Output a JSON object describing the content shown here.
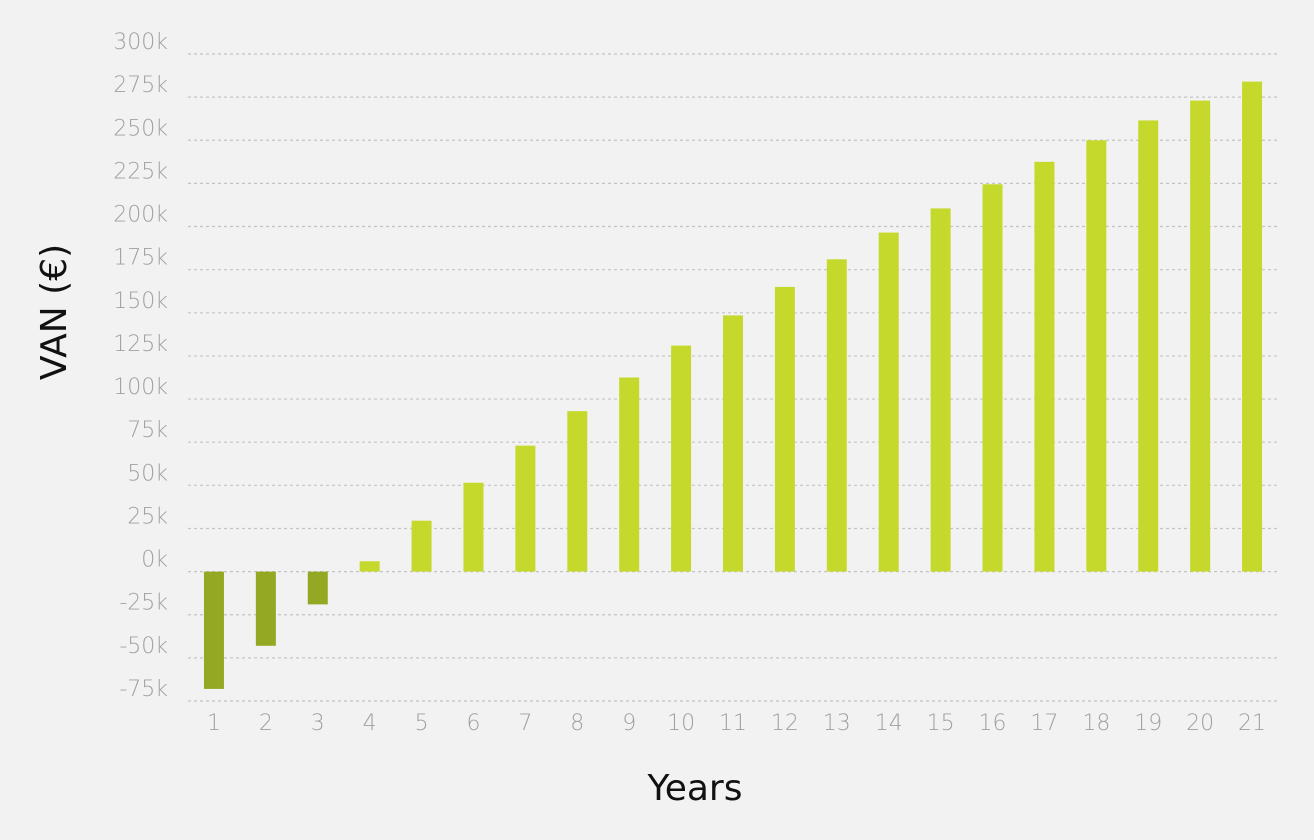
{
  "chart_data": {
    "type": "bar",
    "x_label": "Years",
    "y_label": "VAN (€)",
    "categories": [
      "1",
      "2",
      "3",
      "4",
      "5",
      "6",
      "7",
      "8",
      "9",
      "10",
      "11",
      "12",
      "13",
      "14",
      "15",
      "16",
      "17",
      "18",
      "19",
      "20",
      "21"
    ],
    "values": [
      -68000,
      -43000,
      -19000,
      6000,
      29500,
      51500,
      73000,
      93000,
      112500,
      131000,
      148500,
      165000,
      181000,
      196500,
      210500,
      224500,
      237500,
      250000,
      261500,
      273000,
      284000
    ],
    "color": "#c5d92d",
    "negative_color": "#95a823",
    "ylim": [
      -75000,
      300000
    ],
    "yticks": [
      {
        "value": -75000,
        "label": "-75k"
      },
      {
        "value": -50000,
        "label": "-50k"
      },
      {
        "value": -25000,
        "label": "-25k"
      },
      {
        "value": 0,
        "label": "0k"
      },
      {
        "value": 25000,
        "label": "25k"
      },
      {
        "value": 50000,
        "label": "50k"
      },
      {
        "value": 75000,
        "label": "75k"
      },
      {
        "value": 100000,
        "label": "100k"
      },
      {
        "value": 125000,
        "label": "125k"
      },
      {
        "value": 150000,
        "label": "150k"
      },
      {
        "value": 175000,
        "label": "175k"
      },
      {
        "value": 200000,
        "label": "200k"
      },
      {
        "value": 225000,
        "label": "225k"
      },
      {
        "value": 250000,
        "label": "250k"
      },
      {
        "value": 275000,
        "label": "275k"
      },
      {
        "value": 300000,
        "label": "300k"
      }
    ],
    "grid": true
  }
}
